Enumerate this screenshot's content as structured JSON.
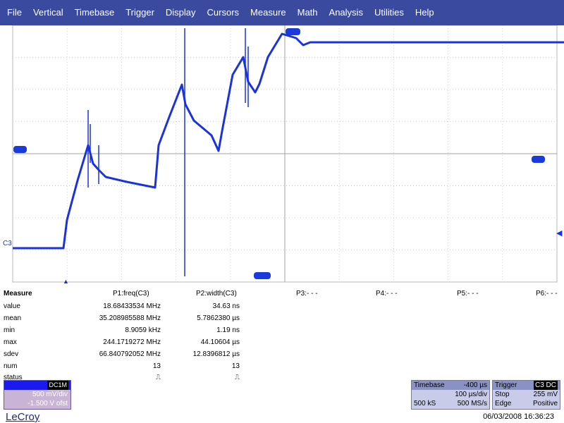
{
  "menu": [
    "File",
    "Vertical",
    "Timebase",
    "Trigger",
    "Display",
    "Cursors",
    "Measure",
    "Math",
    "Analysis",
    "Utilities",
    "Help"
  ],
  "trace": {
    "label": "C3",
    "color": "#1a33dd"
  },
  "measure": {
    "title": "Measure",
    "params": [
      {
        "header": "P1:freq(C3)",
        "values": [
          "18.68433534 MHz",
          "35.208985588 MHz",
          "8.9059 kHz",
          "244.1719272 MHz",
          "66.840792052 MHz",
          "13",
          "⎍"
        ]
      },
      {
        "header": "P2:width(C3)",
        "values": [
          "34.63 ns",
          "5.7862380 µs",
          "1.19 ns",
          "44.10604 µs",
          "12.8396812 µs",
          "13",
          "⎍"
        ]
      }
    ],
    "empty_params": [
      "P3:- - -",
      "P4:- - -",
      "P5:- - -",
      "P6:- - -"
    ],
    "row_labels": [
      "value",
      "mean",
      "min",
      "max",
      "sdev",
      "num",
      "status"
    ]
  },
  "channel": {
    "name": "C3",
    "coupling": "DC1M",
    "vdiv": "500 mV/div",
    "offset": "-1.500 V ofst"
  },
  "timebase": {
    "title": "Timebase",
    "delay": "-400 µs",
    "tdiv": "100 µs/div",
    "samples": "500 kS",
    "rate": "500 MS/s"
  },
  "trigger": {
    "title": "Trigger",
    "badge": "C3 DC",
    "mode": "Stop",
    "level": "255 mV",
    "type": "Edge",
    "slope": "Positive"
  },
  "brand": "LeCroy",
  "datetime": "06/03/2008 16:36:23"
}
